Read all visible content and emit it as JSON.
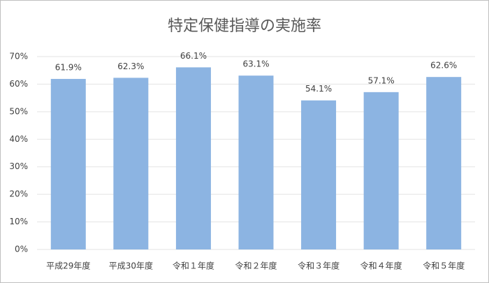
{
  "chart_data": {
    "type": "bar",
    "title": "特定保健指導の実施率",
    "categories": [
      "平成29年度",
      "平成30年度",
      "令和１年度",
      "令和２年度",
      "令和３年度",
      "令和４年度",
      "令和５年度"
    ],
    "values": [
      61.9,
      62.3,
      66.1,
      63.1,
      54.1,
      57.1,
      62.6
    ],
    "value_labels": [
      "61.9%",
      "62.3%",
      "66.1%",
      "63.1%",
      "54.1%",
      "57.1%",
      "62.6%"
    ],
    "color": "#8cb4e2",
    "ylim": [
      0,
      70
    ],
    "yticks": [
      {
        "value": 0,
        "label": "0%"
      },
      {
        "value": 10,
        "label": "10%"
      },
      {
        "value": 20,
        "label": "20%"
      },
      {
        "value": 30,
        "label": "30%"
      },
      {
        "value": 40,
        "label": "40%"
      },
      {
        "value": 50,
        "label": "50%"
      },
      {
        "value": 60,
        "label": "60%"
      },
      {
        "value": 70,
        "label": "70%"
      }
    ],
    "grid": true
  }
}
